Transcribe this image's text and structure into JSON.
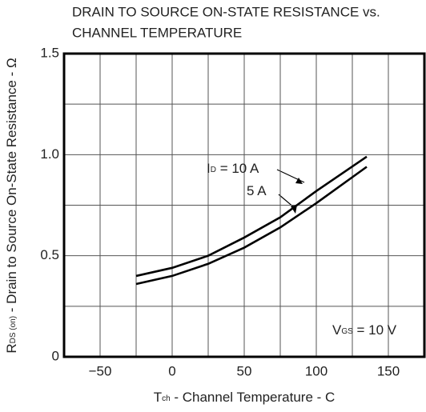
{
  "chart_data": {
    "type": "line",
    "title_lines": [
      "DRAIN TO SOURCE ON-STATE RESISTANCE vs.",
      "CHANNEL TEMPERATURE"
    ],
    "y_label": {
      "main": "R",
      "sub": "DS (on)",
      "rest": " - Drain to Source On-State Resistance - Ω"
    },
    "x_label": {
      "main": "T",
      "sub": "ch",
      "rest": " - Channel Temperature - C"
    },
    "xlim": [
      -75,
      175
    ],
    "ylim": [
      0,
      1.5
    ],
    "xticks": [
      {
        "value": -50,
        "label": "−50"
      },
      0,
      50,
      100,
      150
    ],
    "yticks": [
      0,
      0.5,
      {
        "value": 1,
        "label": "1.0"
      },
      1.5
    ],
    "xgrid": [
      -25,
      25,
      75,
      125
    ],
    "ygrid": [
      0.25,
      0.75,
      1.25
    ],
    "grid": true,
    "x": [
      -25,
      0,
      25,
      50,
      75,
      100,
      135
    ],
    "series": [
      {
        "color": "#000000",
        "values": [
          0.4,
          0.44,
          0.5,
          0.59,
          0.69,
          0.82,
          0.99
        ]
      },
      {
        "color": "#000000",
        "values": [
          0.36,
          0.4,
          0.46,
          0.54,
          0.64,
          0.76,
          0.94
        ]
      }
    ],
    "annotations": [
      {
        "main": "I",
        "sub": "D",
        "rest": " = 10 A"
      },
      {
        "main": "",
        "sub": "",
        "rest": "5 A"
      },
      {
        "main": "V",
        "sub": "GS",
        "rest": " = 10 V"
      }
    ]
  }
}
